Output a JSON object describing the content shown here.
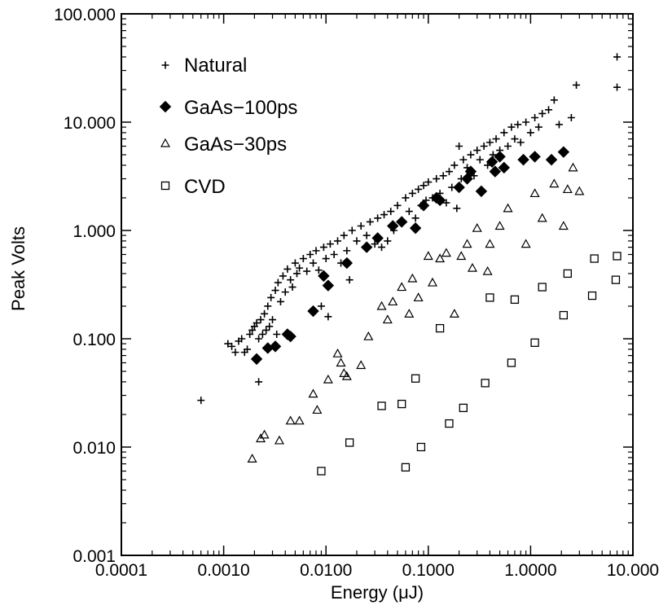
{
  "chart_data": {
    "type": "scatter",
    "title": "",
    "xlabel": "Energy (μJ)",
    "ylabel": "Peak Volts",
    "x_scale": "log",
    "y_scale": "log",
    "xlim": [
      0.0001,
      10.0
    ],
    "ylim": [
      0.001,
      100.0
    ],
    "grid": false,
    "legend_position": "top-left",
    "x_ticks": [
      {
        "value": 0.0001,
        "label": "0.0001"
      },
      {
        "value": 0.001,
        "label": "0.0010"
      },
      {
        "value": 0.01,
        "label": "0.0100"
      },
      {
        "value": 0.1,
        "label": "0.1000"
      },
      {
        "value": 1.0,
        "label": "1.0000"
      },
      {
        "value": 10.0,
        "label": "10.000"
      }
    ],
    "y_ticks": [
      {
        "value": 0.001,
        "label": "0.001"
      },
      {
        "value": 0.01,
        "label": "0.010"
      },
      {
        "value": 0.1,
        "label": "0.100"
      },
      {
        "value": 1.0,
        "label": "1.000"
      },
      {
        "value": 10.0,
        "label": "10.000"
      },
      {
        "value": 100.0,
        "label": "100.000"
      }
    ],
    "series": [
      {
        "name": "Natural",
        "marker": "plus",
        "points": [
          [
            0.0006,
            0.027
          ],
          [
            0.0011,
            0.09
          ],
          [
            0.0012,
            0.085
          ],
          [
            0.0013,
            0.075
          ],
          [
            0.0014,
            0.095
          ],
          [
            0.0015,
            0.1
          ],
          [
            0.0016,
            0.075
          ],
          [
            0.0017,
            0.08
          ],
          [
            0.0018,
            0.11
          ],
          [
            0.0019,
            0.12
          ],
          [
            0.002,
            0.13
          ],
          [
            0.0021,
            0.14
          ],
          [
            0.0022,
            0.04
          ],
          [
            0.0022,
            0.1
          ],
          [
            0.0023,
            0.15
          ],
          [
            0.0024,
            0.11
          ],
          [
            0.0025,
            0.17
          ],
          [
            0.0026,
            0.12
          ],
          [
            0.0027,
            0.2
          ],
          [
            0.0028,
            0.13
          ],
          [
            0.0029,
            0.24
          ],
          [
            0.003,
            0.15
          ],
          [
            0.0032,
            0.28
          ],
          [
            0.0033,
            0.11
          ],
          [
            0.0034,
            0.33
          ],
          [
            0.0036,
            0.22
          ],
          [
            0.0038,
            0.38
          ],
          [
            0.004,
            0.27
          ],
          [
            0.0042,
            0.44
          ],
          [
            0.0045,
            0.35
          ],
          [
            0.0047,
            0.3
          ],
          [
            0.005,
            0.5
          ],
          [
            0.0052,
            0.4
          ],
          [
            0.0055,
            0.45
          ],
          [
            0.006,
            0.55
          ],
          [
            0.0065,
            0.42
          ],
          [
            0.007,
            0.6
          ],
          [
            0.0075,
            0.5
          ],
          [
            0.008,
            0.65
          ],
          [
            0.0085,
            0.43
          ],
          [
            0.009,
            0.2
          ],
          [
            0.0095,
            0.7
          ],
          [
            0.01,
            0.55
          ],
          [
            0.0105,
            0.16
          ],
          [
            0.011,
            0.75
          ],
          [
            0.012,
            0.6
          ],
          [
            0.013,
            0.8
          ],
          [
            0.014,
            0.5
          ],
          [
            0.015,
            0.9
          ],
          [
            0.016,
            0.65
          ],
          [
            0.017,
            0.35
          ],
          [
            0.018,
            1.0
          ],
          [
            0.02,
            0.8
          ],
          [
            0.022,
            1.1
          ],
          [
            0.025,
            0.9
          ],
          [
            0.027,
            1.2
          ],
          [
            0.03,
            0.75
          ],
          [
            0.032,
            1.3
          ],
          [
            0.035,
            0.7
          ],
          [
            0.037,
            1.4
          ],
          [
            0.04,
            0.8
          ],
          [
            0.043,
            1.5
          ],
          [
            0.046,
            1.0
          ],
          [
            0.05,
            1.7
          ],
          [
            0.055,
            1.2
          ],
          [
            0.06,
            2.0
          ],
          [
            0.065,
            1.5
          ],
          [
            0.07,
            2.2
          ],
          [
            0.075,
            1.3
          ],
          [
            0.08,
            2.4
          ],
          [
            0.085,
            1.7
          ],
          [
            0.09,
            2.6
          ],
          [
            0.095,
            1.9
          ],
          [
            0.1,
            2.8
          ],
          [
            0.11,
            2.0
          ],
          [
            0.12,
            3.0
          ],
          [
            0.13,
            2.2
          ],
          [
            0.14,
            3.2
          ],
          [
            0.15,
            1.8
          ],
          [
            0.16,
            3.5
          ],
          [
            0.17,
            2.5
          ],
          [
            0.18,
            4.0
          ],
          [
            0.19,
            1.6
          ],
          [
            0.2,
            6.0
          ],
          [
            0.21,
            3.0
          ],
          [
            0.22,
            4.5
          ],
          [
            0.24,
            3.8
          ],
          [
            0.26,
            5.0
          ],
          [
            0.28,
            3.2
          ],
          [
            0.3,
            5.5
          ],
          [
            0.32,
            4.5
          ],
          [
            0.35,
            6.0
          ],
          [
            0.38,
            4.0
          ],
          [
            0.4,
            6.5
          ],
          [
            0.43,
            5.0
          ],
          [
            0.46,
            7.0
          ],
          [
            0.5,
            5.5
          ],
          [
            0.55,
            8.0
          ],
          [
            0.6,
            6.0
          ],
          [
            0.65,
            9.0
          ],
          [
            0.7,
            7.0
          ],
          [
            0.75,
            9.5
          ],
          [
            0.8,
            6.5
          ],
          [
            0.9,
            10.0
          ],
          [
            1.0,
            8.0
          ],
          [
            1.1,
            11.0
          ],
          [
            1.2,
            9.0
          ],
          [
            1.3,
            12.0
          ],
          [
            1.5,
            13.0
          ],
          [
            1.7,
            16.0
          ],
          [
            1.9,
            9.5
          ],
          [
            2.8,
            22.0
          ],
          [
            2.5,
            11.0
          ],
          [
            7.0,
            40.0
          ],
          [
            7.0,
            21.0
          ]
        ]
      },
      {
        "name": "GaAs−100ps",
        "marker": "diamond-filled",
        "points": [
          [
            0.0021,
            0.065
          ],
          [
            0.0027,
            0.082
          ],
          [
            0.0032,
            0.085
          ],
          [
            0.0042,
            0.11
          ],
          [
            0.0045,
            0.105
          ],
          [
            0.0075,
            0.18
          ],
          [
            0.0095,
            0.38
          ],
          [
            0.0105,
            0.31
          ],
          [
            0.016,
            0.5
          ],
          [
            0.025,
            0.7
          ],
          [
            0.032,
            0.85
          ],
          [
            0.045,
            1.1
          ],
          [
            0.055,
            1.2
          ],
          [
            0.075,
            1.05
          ],
          [
            0.09,
            1.7
          ],
          [
            0.12,
            2.0
          ],
          [
            0.13,
            1.9
          ],
          [
            0.2,
            2.5
          ],
          [
            0.24,
            3.0
          ],
          [
            0.26,
            3.5
          ],
          [
            0.33,
            2.3
          ],
          [
            0.42,
            4.3
          ],
          [
            0.45,
            3.5
          ],
          [
            0.5,
            4.8
          ],
          [
            0.55,
            3.8
          ],
          [
            0.85,
            4.5
          ],
          [
            1.1,
            4.8
          ],
          [
            1.6,
            4.5
          ],
          [
            2.1,
            5.3
          ]
        ]
      },
      {
        "name": "GaAs−30ps",
        "marker": "triangle-open",
        "points": [
          [
            0.0019,
            0.0078
          ],
          [
            0.0023,
            0.012
          ],
          [
            0.0025,
            0.013
          ],
          [
            0.0035,
            0.0115
          ],
          [
            0.0045,
            0.0175
          ],
          [
            0.0055,
            0.0175
          ],
          [
            0.0075,
            0.031
          ],
          [
            0.0082,
            0.022
          ],
          [
            0.0105,
            0.042
          ],
          [
            0.013,
            0.073
          ],
          [
            0.014,
            0.06
          ],
          [
            0.015,
            0.048
          ],
          [
            0.016,
            0.045
          ],
          [
            0.022,
            0.057
          ],
          [
            0.026,
            0.105
          ],
          [
            0.035,
            0.2
          ],
          [
            0.04,
            0.15
          ],
          [
            0.045,
            0.22
          ],
          [
            0.055,
            0.3
          ],
          [
            0.065,
            0.17
          ],
          [
            0.07,
            0.36
          ],
          [
            0.08,
            0.24
          ],
          [
            0.1,
            0.58
          ],
          [
            0.11,
            0.33
          ],
          [
            0.13,
            0.55
          ],
          [
            0.15,
            0.62
          ],
          [
            0.18,
            0.17
          ],
          [
            0.21,
            0.58
          ],
          [
            0.24,
            0.75
          ],
          [
            0.27,
            0.45
          ],
          [
            0.3,
            1.05
          ],
          [
            0.38,
            0.42
          ],
          [
            0.4,
            0.75
          ],
          [
            0.5,
            1.1
          ],
          [
            0.6,
            1.6
          ],
          [
            0.9,
            0.75
          ],
          [
            1.1,
            2.2
          ],
          [
            1.3,
            1.3
          ],
          [
            1.7,
            2.7
          ],
          [
            2.1,
            1.1
          ],
          [
            2.3,
            2.4
          ],
          [
            2.6,
            3.8
          ],
          [
            3.0,
            2.3
          ]
        ]
      },
      {
        "name": "CVD",
        "marker": "square-open",
        "points": [
          [
            0.009,
            0.006
          ],
          [
            0.017,
            0.011
          ],
          [
            0.035,
            0.024
          ],
          [
            0.055,
            0.025
          ],
          [
            0.06,
            0.0065
          ],
          [
            0.075,
            0.043
          ],
          [
            0.085,
            0.01
          ],
          [
            0.13,
            0.125
          ],
          [
            0.16,
            0.0165
          ],
          [
            0.22,
            0.023
          ],
          [
            0.36,
            0.039
          ],
          [
            0.4,
            0.24
          ],
          [
            0.65,
            0.06
          ],
          [
            0.7,
            0.23
          ],
          [
            1.1,
            0.092
          ],
          [
            1.3,
            0.3
          ],
          [
            2.1,
            0.165
          ],
          [
            2.3,
            0.4
          ],
          [
            4.0,
            0.25
          ],
          [
            4.2,
            0.55
          ],
          [
            6.8,
            0.35
          ],
          [
            7.0,
            0.58
          ]
        ]
      }
    ]
  }
}
